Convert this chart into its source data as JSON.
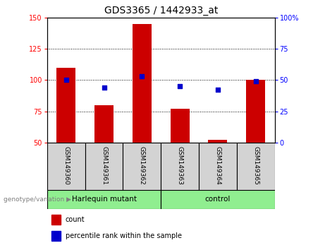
{
  "title": "GDS3365 / 1442933_at",
  "samples": [
    "GSM149360",
    "GSM149361",
    "GSM149362",
    "GSM149363",
    "GSM149364",
    "GSM149365"
  ],
  "counts": [
    110,
    80,
    145,
    77,
    52,
    100
  ],
  "percentiles": [
    50,
    44,
    53,
    45,
    42,
    49
  ],
  "group1_label": "Harlequin mutant",
  "group2_label": "control",
  "group_color": "#90EE90",
  "ylim_left": [
    50,
    150
  ],
  "ylim_right": [
    0,
    100
  ],
  "yticks_left": [
    50,
    75,
    100,
    125,
    150
  ],
  "yticks_right": [
    0,
    25,
    50,
    75,
    100
  ],
  "bar_color": "#CC0000",
  "dot_color": "#0000CC",
  "bar_width": 0.5,
  "legend_count_label": "count",
  "legend_pct_label": "percentile rank within the sample",
  "genotype_label": "genotype/variation"
}
